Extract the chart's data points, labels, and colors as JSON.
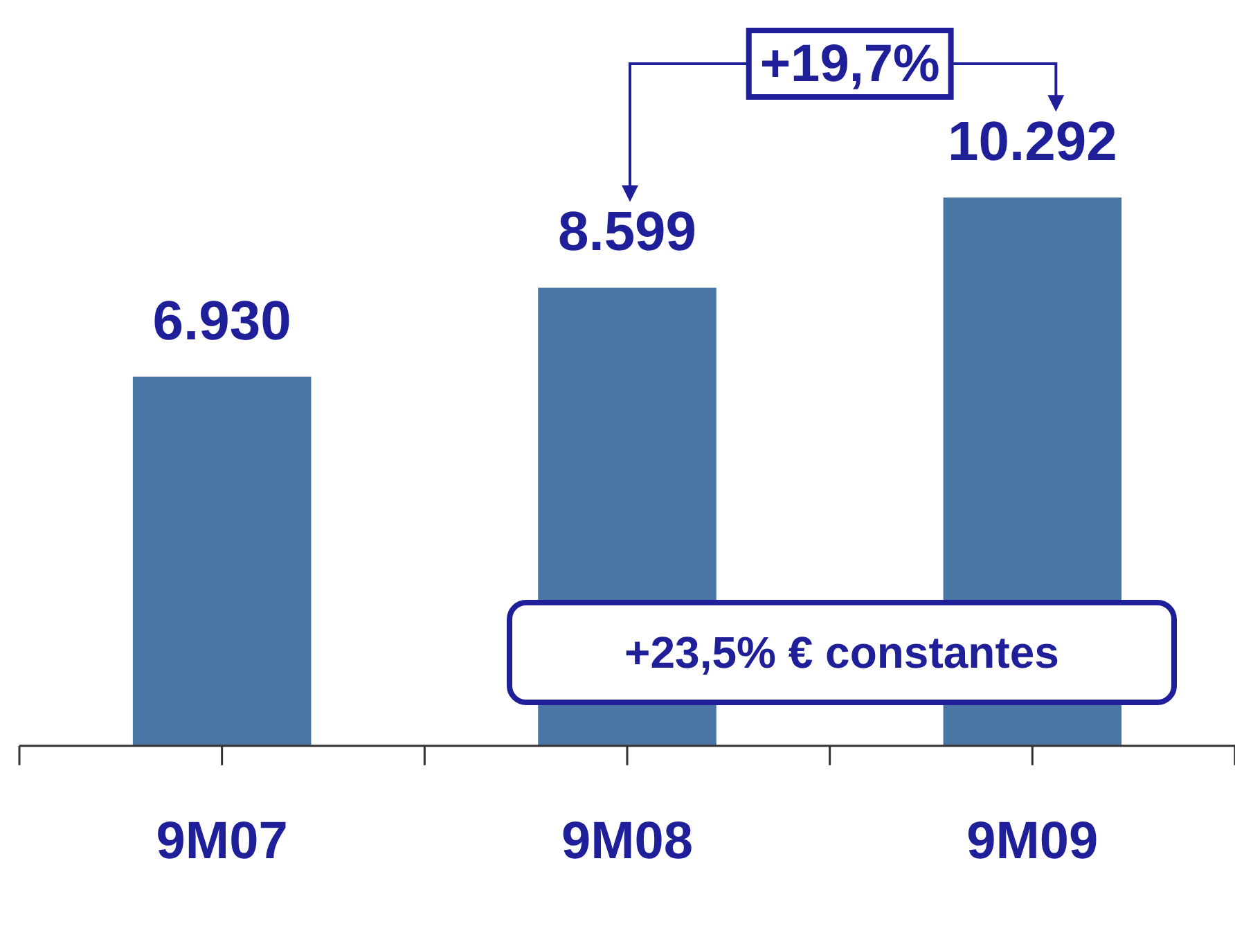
{
  "chart_data": {
    "type": "bar",
    "categories": [
      "9M07",
      "9M08",
      "9M09"
    ],
    "values": [
      6930,
      8599,
      10292
    ],
    "value_labels": [
      "6.930",
      "8.599",
      "10.292"
    ],
    "color": "#4a76a6",
    "tick_labels": "x",
    "grid": false,
    "legend": false,
    "annotations": [
      "+19,7%",
      "+23,5% € constantes"
    ]
  }
}
